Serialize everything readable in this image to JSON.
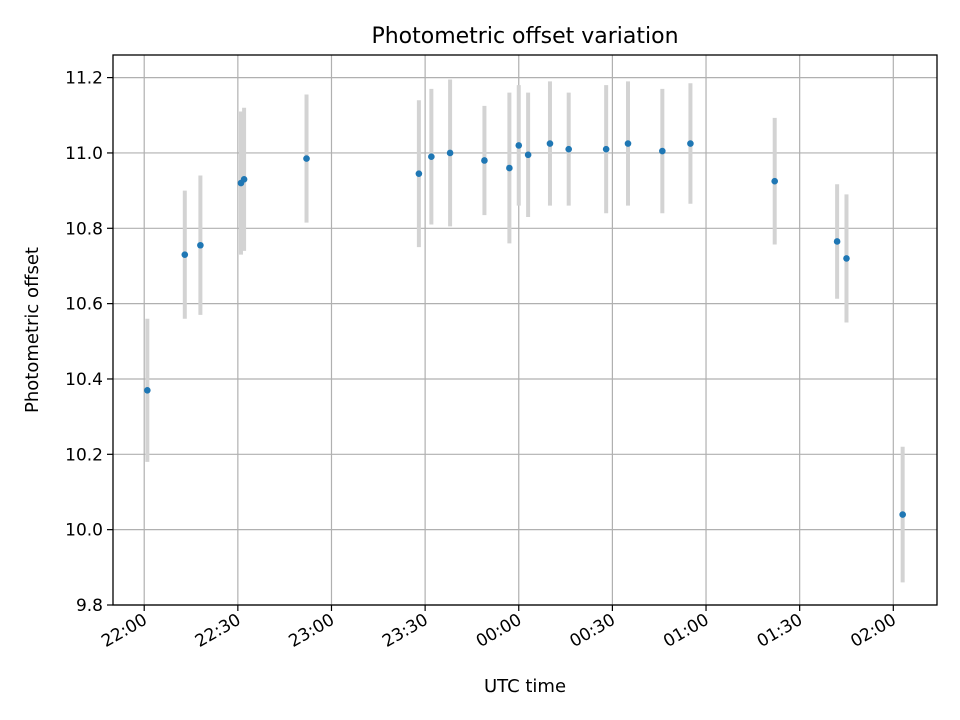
{
  "chart_data": {
    "type": "scatter",
    "title": "Photometric offset variation",
    "xlabel": "UTC time",
    "ylabel": "Photometric offset",
    "x_ticks": [
      "22:00",
      "22:30",
      "23:00",
      "23:30",
      "00:00",
      "00:30",
      "01:00",
      "01:30",
      "02:00"
    ],
    "y_ticks": [
      "9.8",
      "10.0",
      "10.2",
      "10.4",
      "10.6",
      "10.8",
      "11.0",
      "11.2"
    ],
    "xlim": [
      "21:50",
      "02:14"
    ],
    "ylim": [
      9.8,
      11.26
    ],
    "grid": true,
    "colors": {
      "point": "#1f77b4",
      "errorbar": "#d3d3d3",
      "grid": "#b0b0b0"
    },
    "points": [
      {
        "time": "22:01",
        "y": 10.37,
        "err": 0.19
      },
      {
        "time": "22:13",
        "y": 10.73,
        "err": 0.17
      },
      {
        "time": "22:18",
        "y": 10.755,
        "err": 0.185
      },
      {
        "time": "22:31",
        "y": 10.92,
        "err": 0.19
      },
      {
        "time": "22:32",
        "y": 10.93,
        "err": 0.19
      },
      {
        "time": "22:52",
        "y": 10.985,
        "err": 0.17
      },
      {
        "time": "23:28",
        "y": 10.945,
        "err": 0.195
      },
      {
        "time": "23:32",
        "y": 10.99,
        "err": 0.18
      },
      {
        "time": "23:38",
        "y": 11.0,
        "err": 0.195
      },
      {
        "time": "23:49",
        "y": 10.98,
        "err": 0.145
      },
      {
        "time": "23:57",
        "y": 10.96,
        "err": 0.2
      },
      {
        "time": "00:00",
        "y": 11.02,
        "err": 0.16
      },
      {
        "time": "00:03",
        "y": 10.995,
        "err": 0.165
      },
      {
        "time": "00:10",
        "y": 11.025,
        "err": 0.165
      },
      {
        "time": "00:16",
        "y": 11.01,
        "err": 0.15
      },
      {
        "time": "00:28",
        "y": 11.01,
        "err": 0.17
      },
      {
        "time": "00:35",
        "y": 11.025,
        "err": 0.165
      },
      {
        "time": "00:46",
        "y": 11.005,
        "err": 0.165
      },
      {
        "time": "00:55",
        "y": 11.025,
        "err": 0.16
      },
      {
        "time": "01:22",
        "y": 10.925,
        "err": 0.168
      },
      {
        "time": "01:42",
        "y": 10.765,
        "err": 0.152
      },
      {
        "time": "01:45",
        "y": 10.72,
        "err": 0.17
      },
      {
        "time": "02:03",
        "y": 10.04,
        "err": 0.18
      }
    ]
  }
}
